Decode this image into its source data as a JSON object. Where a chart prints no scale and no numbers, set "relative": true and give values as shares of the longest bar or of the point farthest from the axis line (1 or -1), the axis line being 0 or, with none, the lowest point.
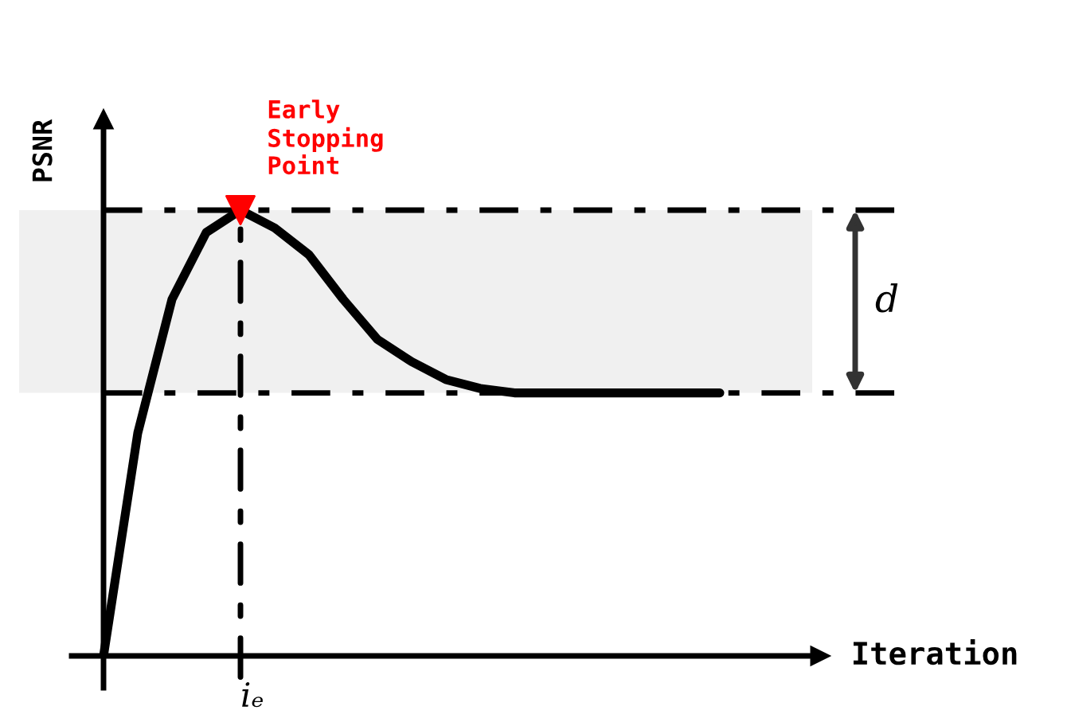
{
  "chart_data": {
    "type": "line",
    "relative": true,
    "xlabel": "Iteration",
    "ylabel": "PSNR",
    "line_style": "solid",
    "categories": [
      null,
      null,
      null,
      null,
      null,
      null,
      null,
      null,
      null,
      null,
      null,
      null,
      null,
      null,
      null,
      null,
      null,
      null,
      null
    ],
    "series": [
      {
        "color": "#000000",
        "values": [
          0,
          0.5,
          0.8,
          0.95,
          1,
          0.96,
          0.9,
          0.8,
          0.71,
          0.66,
          0.62,
          0.6,
          0.59,
          0.59,
          0.59,
          0.59,
          0.59,
          0.59,
          0.59
        ]
      }
    ],
    "ref_lines": [
      {
        "axis": "y",
        "value": 1,
        "line_style": "dashed",
        "color": "#000000"
      },
      {
        "axis": "y",
        "value": 0.59,
        "line_style": "dashed",
        "color": "#000000"
      }
    ],
    "bands": [
      {
        "axis": "y",
        "from": 0.59,
        "to": 1,
        "color": "#f0f0f0"
      }
    ],
    "annotations": [
      {
        "text": "Early\nStopping\nPoint",
        "y": 1
      },
      "d",
      "iₑ"
    ]
  }
}
